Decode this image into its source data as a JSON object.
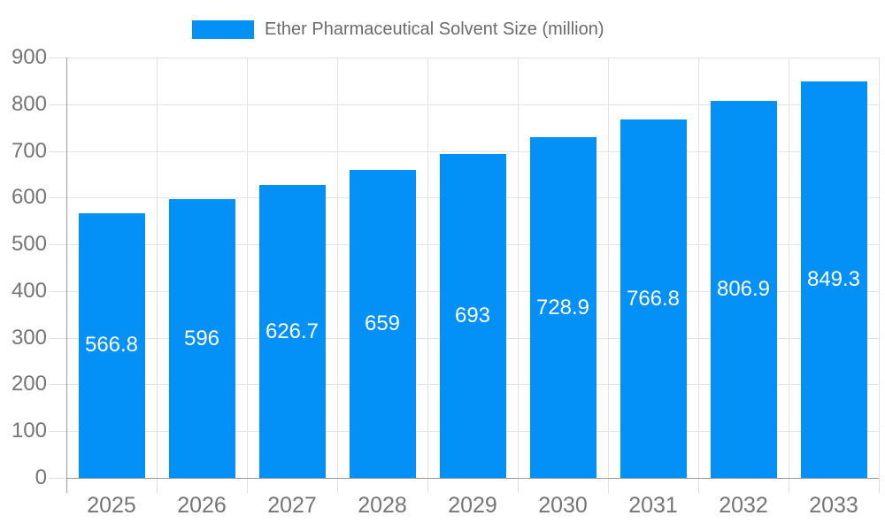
{
  "legend": {
    "label": "Ether Pharmaceutical Solvent Size (million)"
  },
  "colors": {
    "bar": "#0390F7",
    "grid_line": "#e4e4e4",
    "tick_line": "#e0e0e0",
    "axis_line": "#9b9b9b",
    "axis_text": "#757575",
    "legend_text": "#6b6b6b",
    "value_text": "#ffffff",
    "background": "#ffffff"
  },
  "chart_data": {
    "type": "bar",
    "title": "Ether Pharmaceutical Solvent Size (million)",
    "categories": [
      "2025",
      "2026",
      "2027",
      "2028",
      "2029",
      "2030",
      "2031",
      "2032",
      "2033"
    ],
    "values": [
      566.8,
      596,
      626.7,
      659,
      693,
      728.9,
      766.8,
      806.9,
      849.3
    ],
    "value_labels": [
      "566.8",
      "596",
      "626.7",
      "659",
      "693",
      "728.9",
      "766.8",
      "806.9",
      "849.3"
    ],
    "series": [
      {
        "name": "Ether Pharmaceutical Solvent Size (million)",
        "values": [
          566.8,
          596,
          626.7,
          659,
          693,
          728.9,
          766.8,
          806.9,
          849.3
        ]
      }
    ],
    "xlabel": "",
    "ylabel": "",
    "ylim": [
      0,
      900
    ],
    "ytick_step": 100,
    "ytick_labels": [
      "0",
      "100",
      "200",
      "300",
      "400",
      "500",
      "600",
      "700",
      "800",
      "900"
    ],
    "grid": true,
    "legend_position": "top",
    "value_label_position": "inside-center"
  }
}
